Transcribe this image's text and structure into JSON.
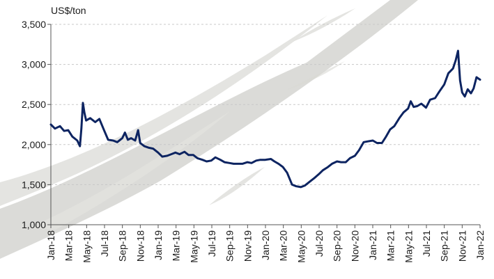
{
  "chart_data": {
    "type": "line",
    "title": "",
    "unit_label": "US$/ton",
    "xlabel": "",
    "ylabel": "",
    "ylim": [
      1000,
      3500
    ],
    "y_ticks": [
      1000,
      1500,
      2000,
      2500,
      3000,
      3500
    ],
    "y_tick_labels": [
      "1,000",
      "1,500",
      "2,000",
      "2,500",
      "3,000",
      "3,500"
    ],
    "x_range": [
      "2018-01",
      "2022-01"
    ],
    "x_tick_labels": [
      "Jan-18",
      "Mar-18",
      "May-18",
      "Jul-18",
      "Sep-18",
      "Nov-18",
      "Jan-19",
      "Mar-19",
      "May-19",
      "Jul-19",
      "Sep-19",
      "Nov-19",
      "Jan-20",
      "Mar-20",
      "May-20",
      "Jul-20",
      "Sep-20",
      "Nov-20",
      "Jan-21",
      "Mar-21",
      "May-21",
      "Jul-21",
      "Sep-21",
      "Nov-21",
      "Jan-22"
    ],
    "grid": "horizontal dashed",
    "legend": "none",
    "line_color": "#0d2461",
    "series": [
      {
        "points": [
          [
            "2018-01-01",
            2250
          ],
          [
            "2018-01-15",
            2200
          ],
          [
            "2018-02-01",
            2230
          ],
          [
            "2018-02-15",
            2170
          ],
          [
            "2018-03-01",
            2180
          ],
          [
            "2018-03-15",
            2100
          ],
          [
            "2018-04-01",
            2050
          ],
          [
            "2018-04-10",
            1980
          ],
          [
            "2018-04-15",
            2200
          ],
          [
            "2018-04-20",
            2520
          ],
          [
            "2018-04-25",
            2400
          ],
          [
            "2018-05-01",
            2300
          ],
          [
            "2018-05-15",
            2330
          ],
          [
            "2018-06-01",
            2280
          ],
          [
            "2018-06-15",
            2320
          ],
          [
            "2018-07-01",
            2180
          ],
          [
            "2018-07-15",
            2060
          ],
          [
            "2018-08-01",
            2050
          ],
          [
            "2018-08-15",
            2030
          ],
          [
            "2018-09-01",
            2080
          ],
          [
            "2018-09-10",
            2150
          ],
          [
            "2018-09-20",
            2060
          ],
          [
            "2018-10-01",
            2080
          ],
          [
            "2018-10-15",
            2050
          ],
          [
            "2018-10-25",
            2180
          ],
          [
            "2018-11-01",
            2020
          ],
          [
            "2018-11-15",
            1980
          ],
          [
            "2018-12-01",
            1960
          ],
          [
            "2018-12-15",
            1950
          ],
          [
            "2019-01-01",
            1900
          ],
          [
            "2019-01-15",
            1850
          ],
          [
            "2019-02-01",
            1860
          ],
          [
            "2019-02-15",
            1880
          ],
          [
            "2019-03-01",
            1900
          ],
          [
            "2019-03-15",
            1880
          ],
          [
            "2019-04-01",
            1910
          ],
          [
            "2019-04-15",
            1870
          ],
          [
            "2019-05-01",
            1870
          ],
          [
            "2019-05-15",
            1830
          ],
          [
            "2019-06-01",
            1810
          ],
          [
            "2019-06-15",
            1790
          ],
          [
            "2019-07-01",
            1800
          ],
          [
            "2019-07-15",
            1840
          ],
          [
            "2019-08-01",
            1810
          ],
          [
            "2019-08-15",
            1780
          ],
          [
            "2019-09-01",
            1770
          ],
          [
            "2019-09-15",
            1760
          ],
          [
            "2019-10-01",
            1760
          ],
          [
            "2019-10-15",
            1760
          ],
          [
            "2019-11-01",
            1780
          ],
          [
            "2019-11-15",
            1770
          ],
          [
            "2019-12-01",
            1800
          ],
          [
            "2019-12-15",
            1810
          ],
          [
            "2020-01-01",
            1810
          ],
          [
            "2020-01-20",
            1820
          ],
          [
            "2020-02-01",
            1790
          ],
          [
            "2020-02-15",
            1760
          ],
          [
            "2020-03-01",
            1720
          ],
          [
            "2020-03-15",
            1650
          ],
          [
            "2020-04-01",
            1500
          ],
          [
            "2020-04-15",
            1480
          ],
          [
            "2020-05-01",
            1470
          ],
          [
            "2020-05-15",
            1490
          ],
          [
            "2020-06-01",
            1540
          ],
          [
            "2020-06-15",
            1580
          ],
          [
            "2020-07-01",
            1630
          ],
          [
            "2020-07-15",
            1680
          ],
          [
            "2020-08-01",
            1720
          ],
          [
            "2020-08-15",
            1760
          ],
          [
            "2020-09-01",
            1790
          ],
          [
            "2020-09-15",
            1780
          ],
          [
            "2020-10-01",
            1780
          ],
          [
            "2020-10-15",
            1830
          ],
          [
            "2020-11-01",
            1860
          ],
          [
            "2020-11-15",
            1930
          ],
          [
            "2020-12-01",
            2030
          ],
          [
            "2020-12-15",
            2040
          ],
          [
            "2021-01-01",
            2050
          ],
          [
            "2021-01-15",
            2020
          ],
          [
            "2021-02-01",
            2020
          ],
          [
            "2021-02-15",
            2100
          ],
          [
            "2021-03-01",
            2190
          ],
          [
            "2021-03-15",
            2230
          ],
          [
            "2021-04-01",
            2330
          ],
          [
            "2021-04-15",
            2400
          ],
          [
            "2021-05-01",
            2450
          ],
          [
            "2021-05-10",
            2540
          ],
          [
            "2021-05-20",
            2470
          ],
          [
            "2021-06-01",
            2480
          ],
          [
            "2021-06-15",
            2510
          ],
          [
            "2021-07-01",
            2460
          ],
          [
            "2021-07-15",
            2560
          ],
          [
            "2021-08-01",
            2580
          ],
          [
            "2021-08-15",
            2660
          ],
          [
            "2021-09-01",
            2750
          ],
          [
            "2021-09-15",
            2890
          ],
          [
            "2021-10-01",
            2950
          ],
          [
            "2021-10-10",
            3050
          ],
          [
            "2021-10-18",
            3170
          ],
          [
            "2021-10-25",
            2800
          ],
          [
            "2021-11-01",
            2650
          ],
          [
            "2021-11-10",
            2600
          ],
          [
            "2021-11-20",
            2690
          ],
          [
            "2021-12-01",
            2640
          ],
          [
            "2021-12-10",
            2700
          ],
          [
            "2021-12-20",
            2840
          ],
          [
            "2022-01-01",
            2810
          ]
        ]
      }
    ]
  }
}
